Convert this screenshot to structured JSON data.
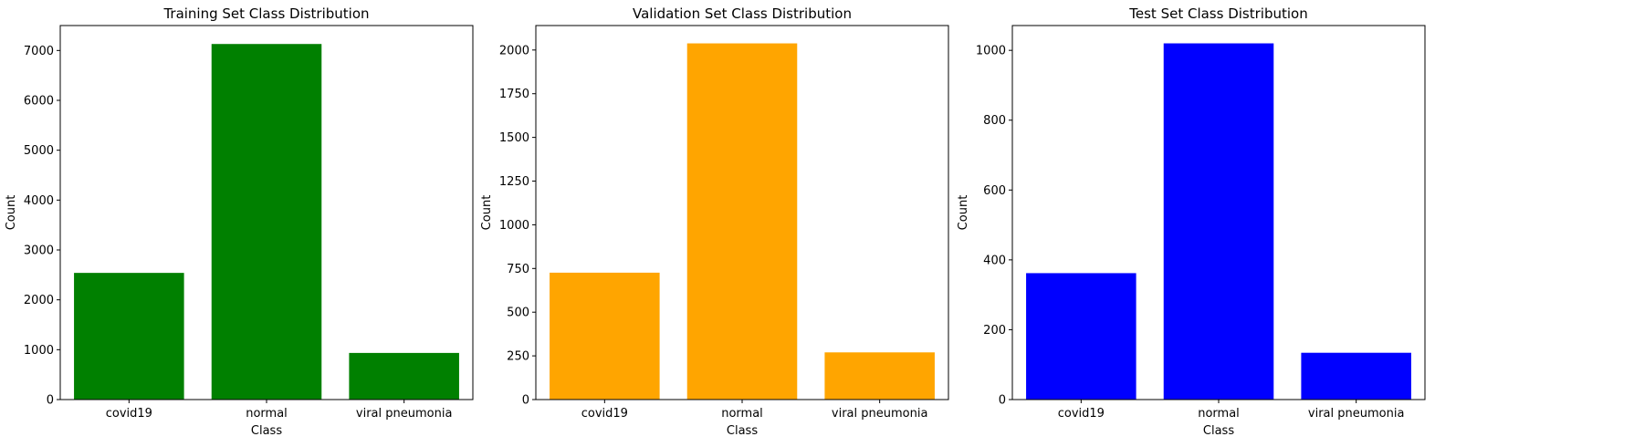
{
  "chart_data": [
    {
      "type": "bar",
      "title": "Training Set Class Distribution",
      "xlabel": "Class",
      "ylabel": "Count",
      "categories": [
        "covid19",
        "normal",
        "viral pneumonia"
      ],
      "values": [
        2540,
        7130,
        935
      ],
      "ylim": [
        0,
        7500
      ],
      "yticks": [
        0,
        1000,
        2000,
        3000,
        4000,
        5000,
        6000,
        7000
      ],
      "color": "#008000",
      "grid": false
    },
    {
      "type": "bar",
      "title": "Validation Set Class Distribution",
      "xlabel": "Class",
      "ylabel": "Count",
      "categories": [
        "covid19",
        "normal",
        "viral pneumonia"
      ],
      "values": [
        726,
        2038,
        270
      ],
      "ylim": [
        0,
        2140
      ],
      "yticks": [
        0,
        250,
        500,
        750,
        1000,
        1250,
        1500,
        1750,
        2000
      ],
      "color": "#FFA500",
      "grid": false
    },
    {
      "type": "bar",
      "title": "Test Set Class Distribution",
      "xlabel": "Class",
      "ylabel": "Count",
      "categories": [
        "covid19",
        "normal",
        "viral pneumonia"
      ],
      "values": [
        362,
        1020,
        134
      ],
      "ylim": [
        0,
        1071
      ],
      "yticks": [
        0,
        200,
        400,
        600,
        800,
        1000
      ],
      "color": "#0000FF",
      "grid": false
    }
  ]
}
